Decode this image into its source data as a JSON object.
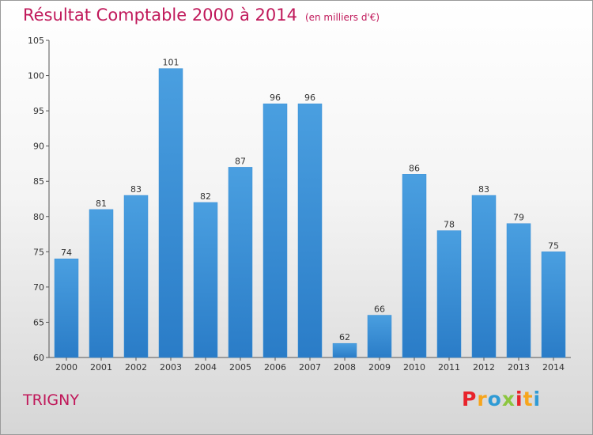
{
  "header": {
    "title": "Résultat Comptable 2000 à 2014",
    "subtitle": "(en milliers d'€)"
  },
  "footer": {
    "commune": "TRIGNY",
    "logo": [
      "P",
      "r",
      "o",
      "x",
      "i",
      "t",
      "i"
    ],
    "logo_colors": [
      "#e8232b",
      "#f7a51c",
      "#2f9bd5",
      "#8cc63f",
      "#e8232b",
      "#f7a51c",
      "#2f9bd5"
    ]
  },
  "chart_data": {
    "type": "bar",
    "title": "Résultat Comptable 2000 à 2014",
    "subtitle": "(en milliers d'€)",
    "categories": [
      "2000",
      "2001",
      "2002",
      "2003",
      "2004",
      "2005",
      "2006",
      "2007",
      "2008",
      "2009",
      "2010",
      "2011",
      "2012",
      "2013",
      "2014"
    ],
    "values": [
      74,
      81,
      83,
      101,
      82,
      87,
      96,
      96,
      62,
      66,
      86,
      78,
      83,
      79,
      75
    ],
    "ylim": [
      60,
      105
    ],
    "yticks": [
      60,
      65,
      70,
      75,
      80,
      85,
      90,
      95,
      100,
      105
    ],
    "grid": false,
    "bar_color": "#4a9fe0",
    "bar_color_dark": "#2a7cc7"
  }
}
